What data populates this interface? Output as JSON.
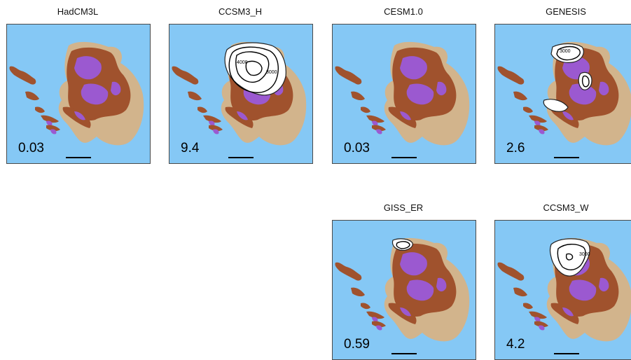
{
  "panels": [
    {
      "id": "hadcm3l",
      "title": "HadCM3L",
      "value": "0.03",
      "ice": "none",
      "contours": []
    },
    {
      "id": "ccsm3h",
      "title": "CCSM3_H",
      "value": "9.4",
      "ice": "large",
      "contours": [
        "4000",
        "3000",
        "3000"
      ]
    },
    {
      "id": "cesm10",
      "title": "CESM1.0",
      "value": "0.03",
      "ice": "none",
      "contours": []
    },
    {
      "id": "genesis",
      "title": "GENESIS",
      "value": "2.6",
      "ice": "three",
      "contours": [
        "3000"
      ]
    },
    {
      "id": "gisser",
      "title": "GISS_ER",
      "value": "0.59",
      "ice": "small",
      "contours": []
    },
    {
      "id": "ccsm3w",
      "title": "CCSM3_W",
      "value": "4.2",
      "ice": "medium",
      "contours": [
        "3000"
      ]
    }
  ],
  "colors": {
    "ocean": "#85c8f5",
    "lowland": "#d2b48c",
    "upland": "#a0522d",
    "highland": "#9b59d0",
    "ice": "#ffffff"
  }
}
